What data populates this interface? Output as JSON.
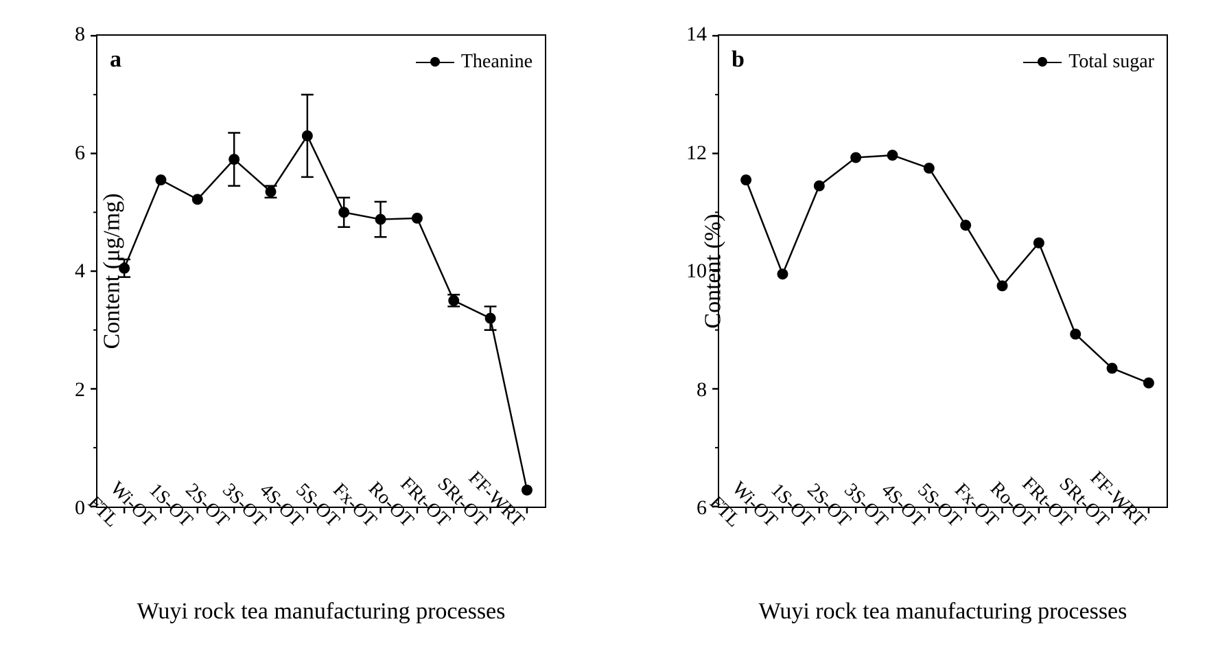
{
  "figure": {
    "background_color": "#ffffff",
    "font_family": "Times New Roman",
    "border_color": "#000000",
    "border_width": 2.5,
    "axis_text_color": "#000000",
    "series_color": "#000000",
    "line_width": 2.5,
    "marker_radius": 8,
    "tick_length_major": 10,
    "tick_length_minor": 6,
    "xlabel_fontsize": 34,
    "ylabel_fontsize": 34,
    "tick_fontsize": 30,
    "xcat_fontsize": 28,
    "panel_letter_fontsize": 34,
    "legend_fontsize": 28,
    "xtick_rotation_deg": 45
  },
  "categories": [
    "FTL",
    "Wi-OT",
    "1S-OT",
    "2S-OT",
    "3S-OT",
    "4S-OT",
    "5S-OT",
    "Fx-OT",
    "Ro-OT",
    "FRt-OT",
    "SRt-OT",
    "FF-WRT"
  ],
  "x_title": "Wuyi rock tea manufacturing processes",
  "panel_a": {
    "letter": "a",
    "type": "line",
    "legend_label": "Theanine",
    "ylabel": "Content (μg/mg)",
    "ylim": [
      0,
      8
    ],
    "ytick_step": 2,
    "y_minor_step": 1,
    "values": [
      4.05,
      5.55,
      5.22,
      5.9,
      5.35,
      6.3,
      5.0,
      4.88,
      4.9,
      3.5,
      3.2,
      0.28
    ],
    "err": [
      0.15,
      0.0,
      0.0,
      0.45,
      0.1,
      0.7,
      0.25,
      0.3,
      0.0,
      0.1,
      0.2,
      0.0
    ]
  },
  "panel_b": {
    "letter": "b",
    "type": "line",
    "legend_label": "Total sugar",
    "ylabel": "Content (%)",
    "ylim": [
      6,
      14
    ],
    "ytick_step": 2,
    "y_minor_step": 1,
    "values": [
      11.55,
      9.95,
      11.45,
      11.93,
      11.97,
      11.75,
      10.78,
      9.75,
      10.48,
      8.93,
      8.35,
      8.1
    ],
    "err": [
      0.0,
      0.0,
      0.0,
      0.0,
      0.0,
      0.0,
      0.0,
      0.0,
      0.0,
      0.0,
      0.0,
      0.0
    ]
  }
}
